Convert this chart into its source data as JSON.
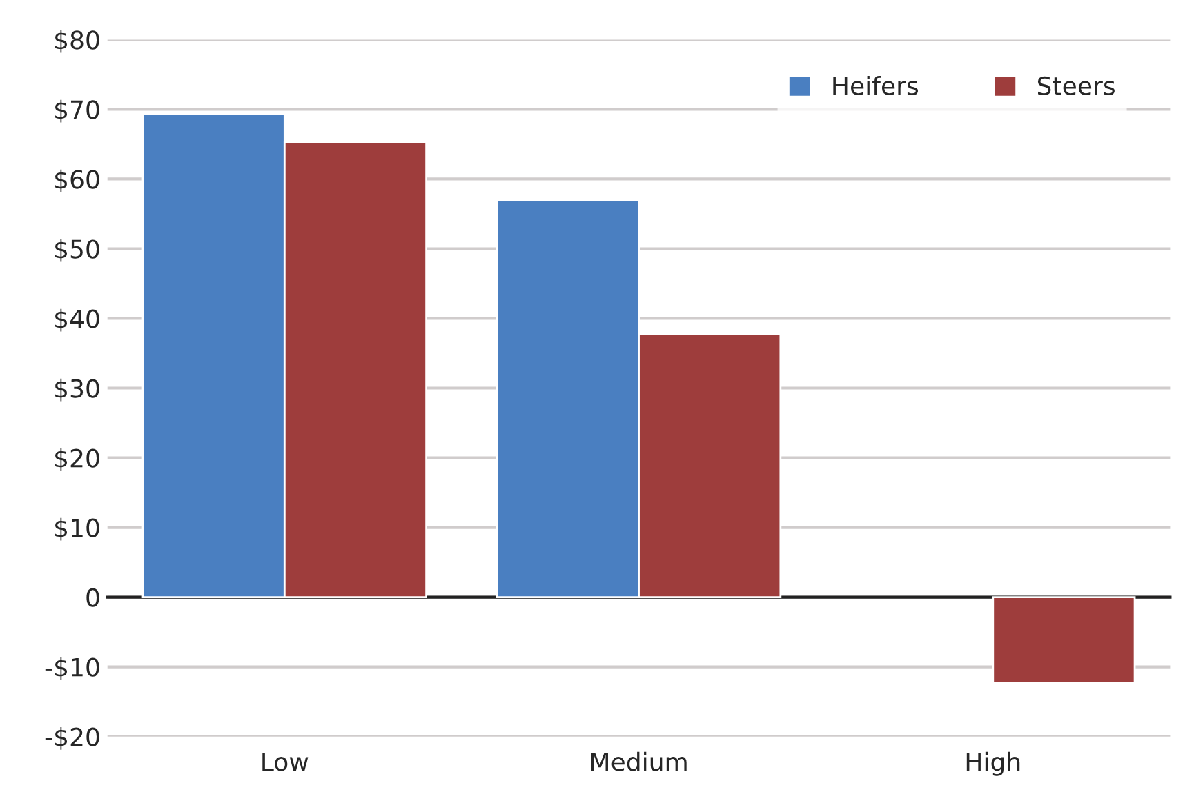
{
  "chart_data": {
    "type": "bar",
    "categories": [
      "Low",
      "Medium",
      "High"
    ],
    "series": [
      {
        "name": "Heifers",
        "color": "#4a7fc1",
        "values": [
          69.3,
          57,
          null
        ]
      },
      {
        "name": "Steers",
        "color": "#9e3d3c",
        "values": [
          65.3,
          37.8,
          -12.3
        ]
      }
    ],
    "ylim": [
      -20,
      80
    ],
    "yticks": [
      {
        "value": -20,
        "label": "-$20"
      },
      {
        "value": -10,
        "label": "-$10"
      },
      0,
      {
        "value": 10,
        "label": "$10"
      },
      {
        "value": 20,
        "label": "$20"
      },
      {
        "value": 30,
        "label": "$30"
      },
      {
        "value": 40,
        "label": "$40"
      },
      {
        "value": 50,
        "label": "$50"
      },
      {
        "value": 60,
        "label": "$60"
      },
      {
        "value": 70,
        "label": "$70"
      },
      {
        "value": 80,
        "label": "$80"
      }
    ],
    "grid": "y",
    "legend": "top right"
  }
}
